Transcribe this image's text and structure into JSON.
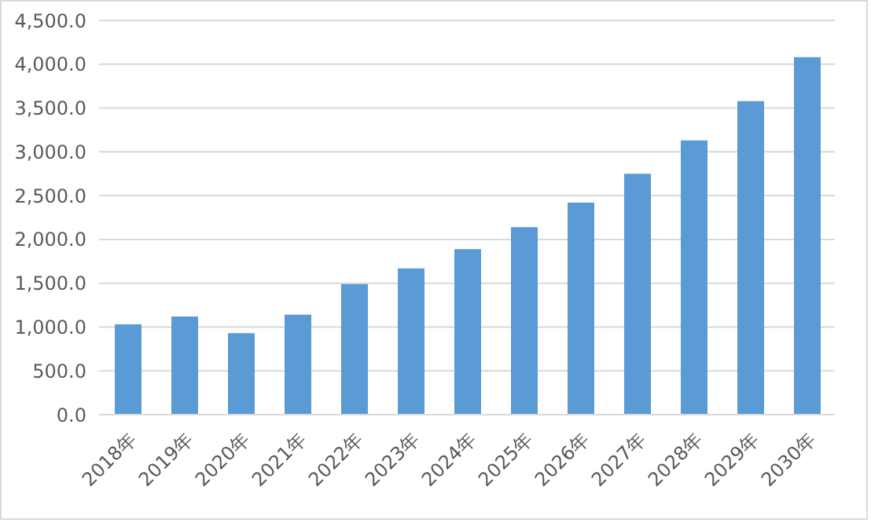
{
  "chart_data": {
    "type": "bar",
    "categories": [
      "2018年",
      "2019年",
      "2020年",
      "2021年",
      "2022年",
      "2023年",
      "2024年",
      "2025年",
      "2026年",
      "2027年",
      "2028年",
      "2029年",
      "2030年"
    ],
    "values": [
      1030,
      1120,
      930,
      1140,
      1490,
      1670,
      1890,
      2140,
      2420,
      2750,
      3130,
      3580,
      4080
    ],
    "color": "#5b9bd5",
    "ylim": [
      0,
      4500
    ],
    "yticks": [
      {
        "value": 0,
        "label": "0.0"
      },
      {
        "value": 500,
        "label": "500.0"
      },
      {
        "value": 1000,
        "label": "1,000.0"
      },
      {
        "value": 1500,
        "label": "1,500.0"
      },
      {
        "value": 2000,
        "label": "2,000.0"
      },
      {
        "value": 2500,
        "label": "2,500.0"
      },
      {
        "value": 3000,
        "label": "3,000.0"
      },
      {
        "value": 3500,
        "label": "3,500.0"
      },
      {
        "value": 4000,
        "label": "4,000.0"
      },
      {
        "value": 4500,
        "label": "4,500.0"
      }
    ],
    "grid": "y"
  }
}
